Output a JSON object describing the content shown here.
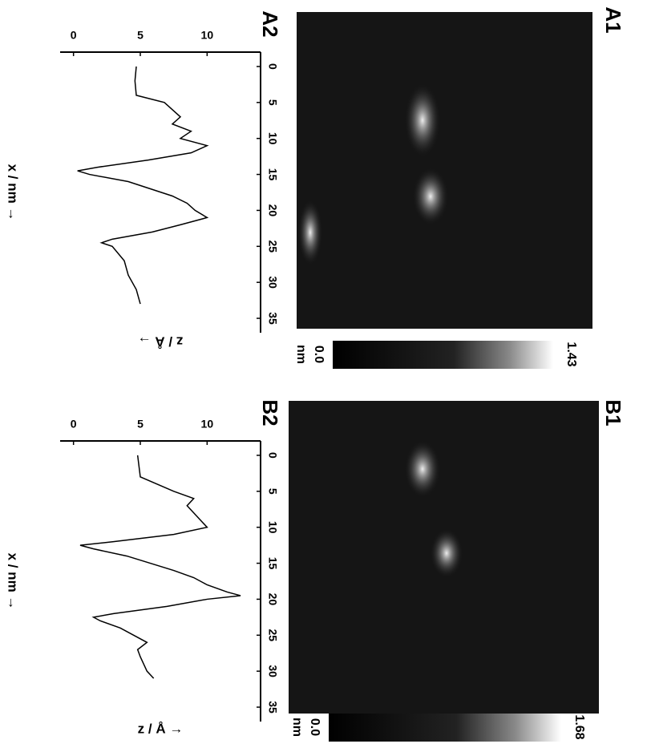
{
  "images": [
    {
      "label": "A1",
      "colorbar": {
        "max": "1.43",
        "min": "0.0",
        "unit": "nm"
      }
    },
    {
      "label": "B1",
      "colorbar": {
        "max": "1.68",
        "min": "0.0",
        "unit": "nm"
      }
    }
  ],
  "chart_data": [
    {
      "type": "line",
      "title": "A2",
      "xlabel": "x / nm →",
      "ylabel": "z / Å →",
      "x": [
        0,
        2,
        4,
        5,
        7,
        8,
        9,
        10,
        11,
        12,
        13,
        14,
        14.5,
        15,
        16,
        18,
        19,
        20,
        21,
        22,
        23,
        24,
        24.5,
        25,
        27,
        29,
        31,
        33
      ],
      "series": [
        {
          "color": "#000000",
          "values": [
            4.7,
            4.6,
            4.7,
            6.8,
            8,
            7.4,
            8.8,
            8,
            10,
            8.8,
            5.6,
            1.8,
            0.3,
            1.2,
            4.1,
            7.4,
            8.5,
            9.1,
            10,
            8,
            5.9,
            2.9,
            2.1,
            2.9,
            3.8,
            4.1,
            4.7,
            5
          ]
        }
      ],
      "xlim": [
        -2,
        37
      ],
      "ylim": [
        -1,
        14
      ],
      "xticks": [
        0,
        5,
        10,
        15,
        20,
        25,
        30,
        35
      ],
      "yticks": [
        0,
        5,
        10
      ]
    },
    {
      "type": "line",
      "title": "B2",
      "xlabel": "x / nm →",
      "ylabel": "z / Å →",
      "x": [
        0,
        3,
        5,
        6,
        7,
        8,
        9,
        10,
        11,
        12,
        12.5,
        13,
        14,
        16,
        17,
        18,
        19,
        19.5,
        20,
        21,
        22,
        22.5,
        23,
        24,
        25,
        26,
        27,
        28,
        30,
        31
      ],
      "series": [
        {
          "color": "#000000",
          "values": [
            4.8,
            5,
            7.5,
            9,
            8.5,
            9,
            9.5,
            10,
            7.5,
            3,
            0.5,
            1.5,
            4,
            7.5,
            9,
            10,
            11.5,
            12.5,
            10,
            7,
            3,
            1.5,
            2,
            3.5,
            4.5,
            5.5,
            4.8,
            5,
            5.5,
            6
          ]
        }
      ],
      "xlim": [
        -2,
        37
      ],
      "ylim": [
        -1,
        14
      ],
      "xticks": [
        0,
        5,
        10,
        15,
        20,
        25,
        30,
        35
      ],
      "yticks": [
        0,
        5,
        10
      ]
    }
  ]
}
